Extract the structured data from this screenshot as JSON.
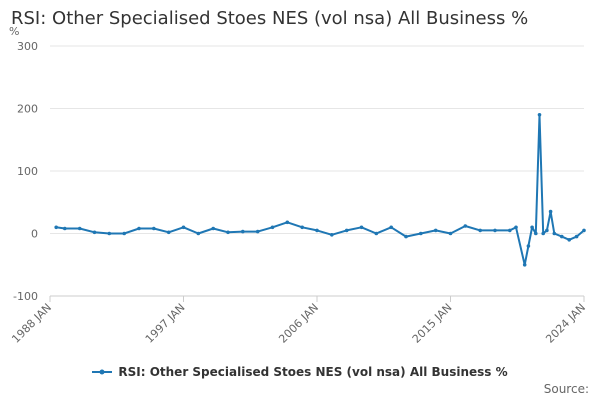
{
  "chart_data": {
    "type": "line",
    "title": "RSI: Other Specialised Stoes NES (vol nsa) All Business %",
    "unit": "%",
    "ylim": [
      -100,
      300
    ],
    "yticks": [
      -100,
      0,
      100,
      200,
      300
    ],
    "xlim": [
      "1988-01",
      "2024-01"
    ],
    "xticks": [
      "1988 JAN",
      "1997 JAN",
      "2006 JAN",
      "2015 JAN",
      "2024 JAN"
    ],
    "grid": true,
    "legend_position": "bottom",
    "color": "#1f77b4",
    "source_label": "Source:",
    "series": [
      {
        "name": "RSI: Other Specialised Stoes NES (vol nsa) All Business %",
        "x": [
          "1988-06",
          "1989-01",
          "1990-01",
          "1991-01",
          "1992-01",
          "1993-01",
          "1994-01",
          "1995-01",
          "1996-01",
          "1997-01",
          "1998-01",
          "1999-01",
          "2000-01",
          "2001-01",
          "2002-01",
          "2003-01",
          "2004-01",
          "2005-01",
          "2006-01",
          "2007-01",
          "2008-01",
          "2009-01",
          "2010-01",
          "2011-01",
          "2012-01",
          "2013-01",
          "2014-01",
          "2015-01",
          "2016-01",
          "2017-01",
          "2018-01",
          "2019-01",
          "2019-06",
          "2020-01",
          "2020-04",
          "2020-07",
          "2020-10",
          "2021-01",
          "2021-04",
          "2021-07",
          "2021-10",
          "2022-01",
          "2022-07",
          "2023-01",
          "2023-07",
          "2024-01"
        ],
        "values": [
          10,
          8,
          8,
          2,
          0,
          0,
          8,
          8,
          2,
          10,
          0,
          8,
          2,
          3,
          3,
          10,
          18,
          10,
          5,
          -2,
          5,
          10,
          0,
          10,
          -5,
          0,
          5,
          0,
          12,
          5,
          5,
          5,
          10,
          -50,
          -20,
          10,
          0,
          190,
          0,
          5,
          35,
          0,
          -5,
          -10,
          -5,
          5
        ]
      }
    ]
  }
}
